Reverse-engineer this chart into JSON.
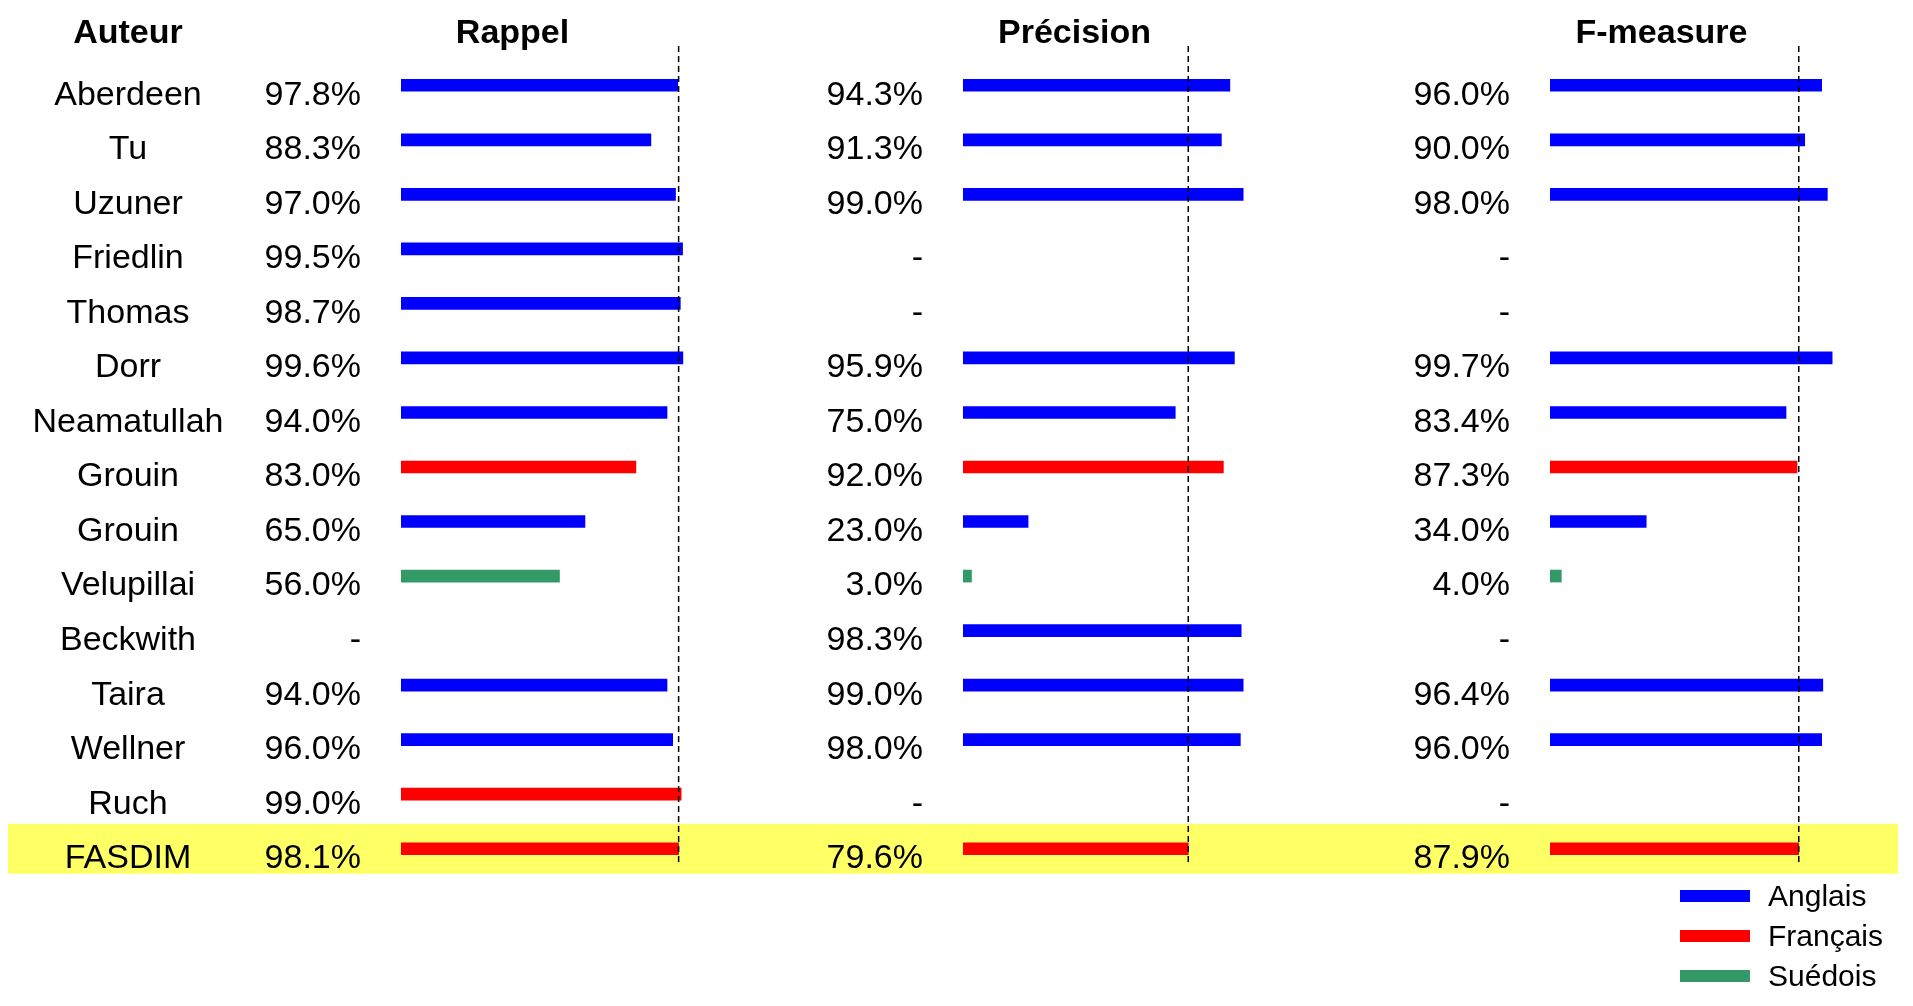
{
  "chart_data": [
    {
      "type": "bar",
      "orientation": "horizontal",
      "stacked": true,
      "title": "Rappel",
      "ylabel": "Auteur",
      "categories": [
        "Aberdeen",
        "Tu",
        "Uzuner",
        "Friedlin",
        "Thomas",
        "Dorr",
        "Neamatullah",
        "Grouin",
        "Grouin",
        "Velupillai",
        "Beckwith",
        "Taira",
        "Wellner",
        "Ruch",
        "FASDIM"
      ],
      "series": [
        {
          "color": "#0000ff",
          "values": [
            97.8,
            88.3,
            97.0,
            99.5,
            98.7,
            99.6,
            94.0,
            null,
            65.0,
            null,
            null,
            94.0,
            96.0,
            null,
            null
          ],
          "value_labels": [
            "97.8%",
            "88.3%",
            "97.0%",
            "99.5%",
            "98.7%",
            "99.6%",
            "94.0%",
            null,
            "65.0%",
            null,
            "-",
            "94.0%",
            "96.0%",
            null,
            null
          ]
        },
        {
          "color": "#ff0000",
          "values": [
            null,
            null,
            null,
            null,
            null,
            null,
            null,
            83.0,
            null,
            null,
            null,
            null,
            null,
            99.0,
            98.1
          ],
          "value_labels": [
            null,
            null,
            null,
            null,
            null,
            null,
            null,
            "83.0%",
            null,
            null,
            null,
            null,
            null,
            "99.0%",
            "98.1%"
          ]
        },
        {
          "color": "#339966",
          "values": [
            null,
            null,
            null,
            null,
            null,
            null,
            null,
            null,
            null,
            56.0,
            null,
            null,
            null,
            null,
            null
          ],
          "value_labels": [
            null,
            null,
            null,
            null,
            null,
            null,
            null,
            null,
            null,
            "56.0%",
            null,
            null,
            null,
            null,
            null
          ]
        }
      ],
      "xlim": [
        0,
        100
      ],
      "tick_labels": "y",
      "ref_lines": [
        {
          "axis": "x",
          "value": 98.1,
          "color": "#000000",
          "line_style": "dashed"
        }
      ],
      "bands": [
        {
          "axis": "y",
          "from": "FASDIM",
          "to": "FASDIM",
          "color": "#ffff66"
        }
      ]
    },
    {
      "type": "bar",
      "orientation": "horizontal",
      "stacked": true,
      "title": "Précision",
      "categories": [
        "Aberdeen",
        "Tu",
        "Uzuner",
        "Friedlin",
        "Thomas",
        "Dorr",
        "Neamatullah",
        "Grouin",
        "Grouin",
        "Velupillai",
        "Beckwith",
        "Taira",
        "Wellner",
        "Ruch",
        "FASDIM"
      ],
      "series": [
        {
          "color": "#0000ff",
          "values": [
            94.3,
            91.3,
            99.0,
            null,
            null,
            95.9,
            75.0,
            null,
            23.0,
            null,
            98.3,
            99.0,
            98.0,
            null,
            null
          ],
          "value_labels": [
            "94.3%",
            "91.3%",
            "99.0%",
            "-",
            "-",
            "95.9%",
            "75.0%",
            null,
            "23.0%",
            null,
            "98.3%",
            "99.0%",
            "98.0%",
            "-",
            null
          ]
        },
        {
          "color": "#ff0000",
          "values": [
            null,
            null,
            null,
            null,
            null,
            null,
            null,
            92.0,
            null,
            null,
            null,
            null,
            null,
            null,
            79.6
          ],
          "value_labels": [
            null,
            null,
            null,
            null,
            null,
            null,
            null,
            "92.0%",
            null,
            null,
            null,
            null,
            null,
            null,
            "79.6%"
          ]
        },
        {
          "color": "#339966",
          "values": [
            null,
            null,
            null,
            null,
            null,
            null,
            null,
            null,
            null,
            3.0,
            null,
            null,
            null,
            null,
            null
          ],
          "value_labels": [
            null,
            null,
            null,
            null,
            null,
            null,
            null,
            null,
            null,
            "3.0%",
            null,
            null,
            null,
            null,
            null
          ]
        }
      ],
      "xlim": [
        0,
        100
      ],
      "tick_labels": false,
      "ref_lines": [
        {
          "axis": "x",
          "value": 79.6,
          "color": "#000000",
          "line_style": "dashed"
        }
      ],
      "bands": [
        {
          "axis": "y",
          "from": "FASDIM",
          "to": "FASDIM",
          "color": "#ffff66"
        }
      ]
    },
    {
      "type": "bar",
      "orientation": "horizontal",
      "stacked": true,
      "title": "F-measure",
      "categories": [
        "Aberdeen",
        "Tu",
        "Uzuner",
        "Friedlin",
        "Thomas",
        "Dorr",
        "Neamatullah",
        "Grouin",
        "Grouin",
        "Velupillai",
        "Beckwith",
        "Taira",
        "Wellner",
        "Ruch",
        "FASDIM"
      ],
      "series": [
        {
          "name": "Anglais",
          "color": "#0000ff",
          "values": [
            96.0,
            90.0,
            98.0,
            null,
            null,
            99.7,
            83.4,
            null,
            34.0,
            null,
            null,
            96.4,
            96.0,
            null,
            null
          ],
          "value_labels": [
            "96.0%",
            "90.0%",
            "98.0%",
            "-",
            "-",
            "99.7%",
            "83.4%",
            null,
            "34.0%",
            null,
            "-",
            "96.4%",
            "96.0%",
            "-",
            null
          ]
        },
        {
          "name": "Français",
          "color": "#ff0000",
          "values": [
            null,
            null,
            null,
            null,
            null,
            null,
            null,
            87.3,
            null,
            null,
            null,
            null,
            null,
            null,
            87.9
          ],
          "value_labels": [
            null,
            null,
            null,
            null,
            null,
            null,
            null,
            "87.3%",
            null,
            null,
            null,
            null,
            null,
            null,
            "87.9%"
          ]
        },
        {
          "name": "Suédois",
          "color": "#339966",
          "values": [
            null,
            null,
            null,
            null,
            null,
            null,
            null,
            null,
            null,
            4.0,
            null,
            null,
            null,
            null,
            null
          ],
          "value_labels": [
            null,
            null,
            null,
            null,
            null,
            null,
            null,
            null,
            null,
            "4.0%",
            null,
            null,
            null,
            null,
            null
          ]
        }
      ],
      "xlim": [
        0,
        100
      ],
      "tick_labels": false,
      "legend": "bottom right",
      "ref_lines": [
        {
          "axis": "x",
          "value": 87.9,
          "color": "#000000",
          "line_style": "dashed"
        }
      ],
      "bands": [
        {
          "axis": "y",
          "from": "FASDIM",
          "to": "FASDIM",
          "color": "#ffff66"
        }
      ]
    }
  ]
}
